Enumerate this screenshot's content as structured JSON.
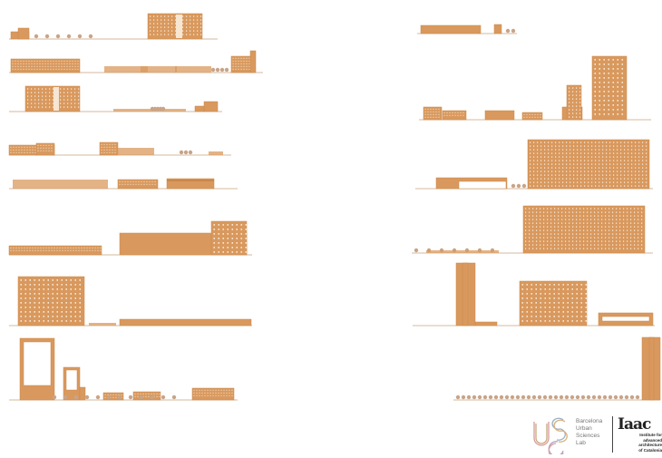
{
  "colors": {
    "building": "#d9995e",
    "building_dark": "#c98848",
    "ground": "#c9a27c",
    "window": "#f6e6d2",
    "tree": "#c8a488"
  },
  "logos": {
    "ubsl": {
      "lines": [
        "Barcelona",
        "Urban",
        "Sciences",
        "Lab"
      ]
    },
    "iaac": {
      "title": "Iaac",
      "lines": [
        "Institute for",
        "advanced",
        "architecture",
        "of Catalonia"
      ]
    }
  }
}
